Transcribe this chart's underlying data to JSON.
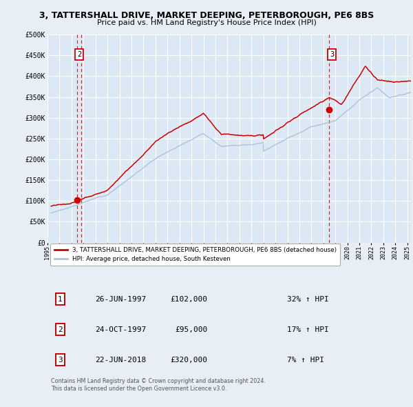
{
  "title": "3, TATTERSHALL DRIVE, MARKET DEEPING, PETERBOROUGH, PE6 8BS",
  "subtitle": "Price paid vs. HM Land Registry's House Price Index (HPI)",
  "bg_color": "#e8eef5",
  "plot_bg_color": "#dce8f4",
  "grid_color": "#ffffff",
  "red_line_color": "#cc0000",
  "blue_line_color": "#aac4dd",
  "marker_color": "#cc0000",
  "dashed_line_color": "#cc0000",
  "ylim": [
    0,
    500000
  ],
  "yticks": [
    0,
    50000,
    100000,
    150000,
    200000,
    250000,
    300000,
    350000,
    400000,
    450000,
    500000
  ],
  "ytick_labels": [
    "£0",
    "£50K",
    "£100K",
    "£150K",
    "£200K",
    "£250K",
    "£300K",
    "£350K",
    "£400K",
    "£450K",
    "£500K"
  ],
  "xstart": 1995.3,
  "xend": 2025.3,
  "xtick_years": [
    1995,
    1996,
    1997,
    1998,
    1999,
    2000,
    2001,
    2002,
    2003,
    2004,
    2005,
    2006,
    2007,
    2008,
    2009,
    2010,
    2011,
    2012,
    2013,
    2014,
    2015,
    2016,
    2017,
    2018,
    2019,
    2020,
    2021,
    2022,
    2023,
    2024,
    2025
  ],
  "legend_line1": "3, TATTERSHALL DRIVE, MARKET DEEPING, PETERBOROUGH, PE6 8BS (detached house)",
  "legend_line2": "HPI: Average price, detached house, South Kesteven",
  "sale1_label": "1",
  "sale1_date": "26-JUN-1997",
  "sale1_price": "£102,000",
  "sale1_hpi": "32% ↑ HPI",
  "sale1_x": 1997.48,
  "sale1_y": 102000,
  "sale2_label": "2",
  "sale2_date": "24-OCT-1997",
  "sale2_price": "£95,000",
  "sale2_hpi": "17% ↑ HPI",
  "sale2_x": 1997.81,
  "sale2_y": 95000,
  "sale3_label": "3",
  "sale3_date": "22-JUN-2018",
  "sale3_price": "£320,000",
  "sale3_hpi": "7% ↑ HPI",
  "sale3_x": 2018.47,
  "sale3_y": 320000,
  "footer": "Contains HM Land Registry data © Crown copyright and database right 2024.\nThis data is licensed under the Open Government Licence v3.0."
}
